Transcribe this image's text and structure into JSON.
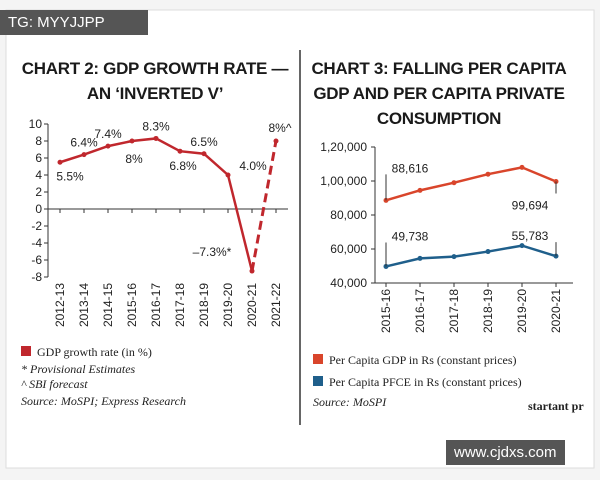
{
  "watermark_top": "TG: MYYJJPP",
  "watermark_bottom": "www.cjdxs.com",
  "logo_fragment": "startant pr",
  "chart_data": [
    {
      "type": "line",
      "title": "CHART 2: GDP GROWTH RATE — AN ‘INVERTED V’",
      "categories": [
        "2012-13",
        "2013-14",
        "2014-15",
        "2015-16",
        "2016-17",
        "2017-18",
        "2018-19",
        "2019-20",
        "2020-21",
        "2021-22"
      ],
      "series": [
        {
          "name": "GDP growth rate (in %)",
          "color": "#c0272d",
          "values": [
            5.5,
            6.4,
            7.4,
            8,
            8.3,
            6.8,
            6.5,
            4.0,
            -7.3,
            8
          ],
          "value_labels": [
            "5.5%",
            "6.4%",
            "7.4%",
            "8%",
            "8.3%",
            "6.8%",
            "6.5%",
            "4.0%",
            "–7.3%*",
            "8%^"
          ]
        }
      ],
      "dashed_from": 8,
      "ylim": [
        -8,
        10
      ],
      "yticks": [
        -8,
        -6,
        -4,
        -2,
        0,
        2,
        4,
        6,
        8,
        10
      ],
      "notes": [
        "* Provisional Estimates",
        "^ SBI forecast"
      ],
      "source": "Source: MoSPI; Express Research"
    },
    {
      "type": "line",
      "title": "CHART 3: FALLING PER CAPITA GDP AND PER CAPITA PRIVATE CONSUMPTION",
      "categories": [
        "2015-16",
        "2016-17",
        "2017-18",
        "2018-19",
        "2019-20",
        "2020-21"
      ],
      "series": [
        {
          "name": "Per Capita GDP in Rs (constant prices)",
          "color": "#d9452b",
          "values": [
            88616,
            94500,
            99000,
            104000,
            108000,
            99694
          ],
          "value_labels": [
            "88,616",
            null,
            null,
            null,
            null,
            "99,694"
          ]
        },
        {
          "name": "Per Capita PFCE in Rs (constant prices)",
          "color": "#1f5f8b",
          "values": [
            49738,
            54500,
            55500,
            58500,
            62000,
            55783
          ],
          "value_labels": [
            "49,738",
            null,
            null,
            null,
            null,
            "55,783"
          ]
        }
      ],
      "ylim": [
        40000,
        120000
      ],
      "yticks": [
        {
          "value": 40000,
          "label": "40,000"
        },
        {
          "value": 60000,
          "label": "60,000"
        },
        {
          "value": 80000,
          "label": "80,000"
        },
        {
          "value": 100000,
          "label": "1,00,000"
        },
        {
          "value": 120000,
          "label": "1,20,000"
        }
      ],
      "source": "Source: MoSPI"
    }
  ]
}
